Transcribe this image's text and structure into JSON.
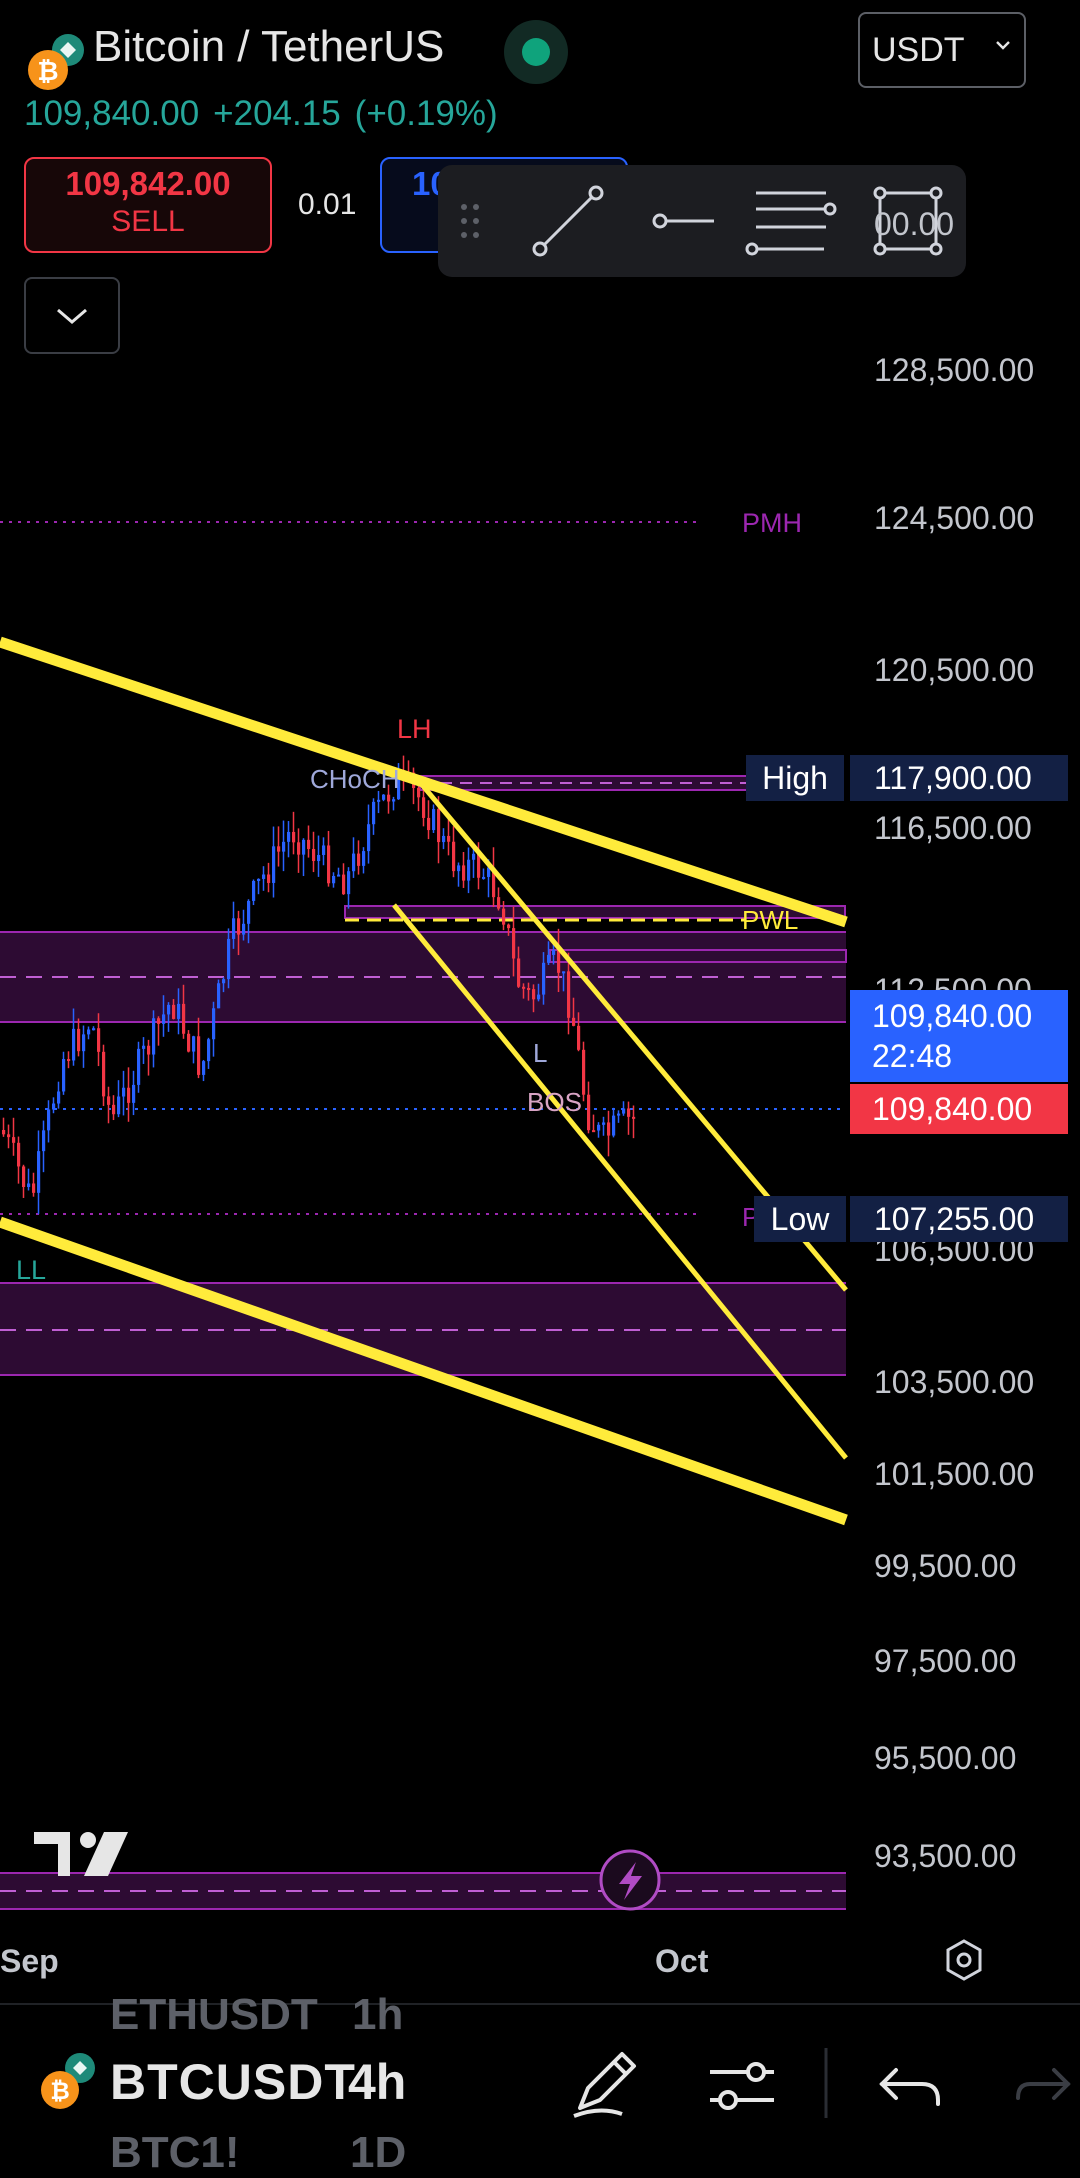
{
  "header": {
    "title": "Bitcoin / TetherUS",
    "last_price": "109,840.00",
    "change": "+204.15",
    "change_pct": "(+0.19%)",
    "currency": "USDT",
    "coin_icon": "bitcoin-icon",
    "status_icon": "market-open-dot-icon"
  },
  "trade": {
    "sell_price": "109,842.00",
    "sell_label": "SELL",
    "quantity": "0.01",
    "buy_price_partial": "10"
  },
  "drawing_toolbar": {
    "tools": [
      "drag-handle-icon",
      "trend-line-icon",
      "horizontal-ray-icon",
      "fib-retracement-icon",
      "rectangle-icon"
    ]
  },
  "chart": {
    "price_scale": [
      "128,500.00",
      "124,500.00",
      "120,500.00",
      "116,500.00",
      "106,500.00",
      "103,500.00",
      "101,500.00",
      "99,500.00",
      "97,500.00",
      "95,500.00",
      "93,500.00"
    ],
    "partial_top_label": "00.00",
    "partial_label_112": "112,500.00",
    "high_label": "High",
    "high_value": "117,900.00",
    "low_label": "Low",
    "low_value": "107,255.00",
    "current_price": "109,840.00",
    "countdown": "22:48",
    "current_price_red": "109,840.00",
    "annotations": {
      "pmh": "PMH",
      "lh": "LH",
      "choch": "CHoCH",
      "pwl": "PWL",
      "bos": "BOS",
      "ll": "LL",
      "l": "L",
      "p": "P"
    },
    "time_axis": [
      "Sep",
      "Oct"
    ],
    "colors": {
      "up": "#2962ff",
      "down": "#f23645",
      "trendline": "#ffeb3b",
      "zone": "#9c27b0"
    }
  },
  "bottom": {
    "symbol_prev": "ETHUSDT",
    "symbol": "BTCUSDT",
    "symbol_next": "BTC1!",
    "timeframe_prev": "1h",
    "timeframe": "4h",
    "timeframe_next": "1D",
    "tools": [
      "pencil-icon",
      "settings-sliders-icon",
      "undo-icon",
      "redo-icon"
    ]
  }
}
